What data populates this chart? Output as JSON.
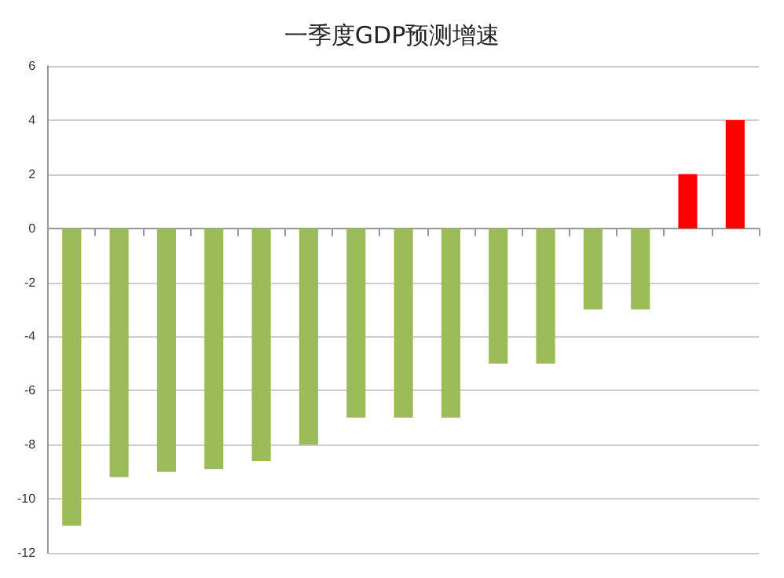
{
  "chart_data": {
    "type": "bar",
    "title": "一季度GDP预测增速",
    "categories": [
      null,
      null,
      null,
      null,
      null,
      null,
      null,
      null,
      null,
      null,
      null,
      null,
      null,
      null,
      null
    ],
    "values": [
      -11,
      -9.2,
      -9,
      -8.9,
      -8.6,
      -8,
      -7,
      -7,
      -7,
      -5,
      -5,
      -3,
      -3,
      2,
      4
    ],
    "colors": [
      "#9bbb59",
      "#9bbb59",
      "#9bbb59",
      "#9bbb59",
      "#9bbb59",
      "#9bbb59",
      "#9bbb59",
      "#9bbb59",
      "#9bbb59",
      "#9bbb59",
      "#9bbb59",
      "#9bbb59",
      "#9bbb59",
      "#ff0000",
      "#ff0000"
    ],
    "ylim": [
      -12,
      6
    ],
    "yticks": [
      -12,
      -10,
      -8,
      -6,
      -4,
      -2,
      0,
      2,
      4,
      6
    ],
    "grid": "y"
  }
}
